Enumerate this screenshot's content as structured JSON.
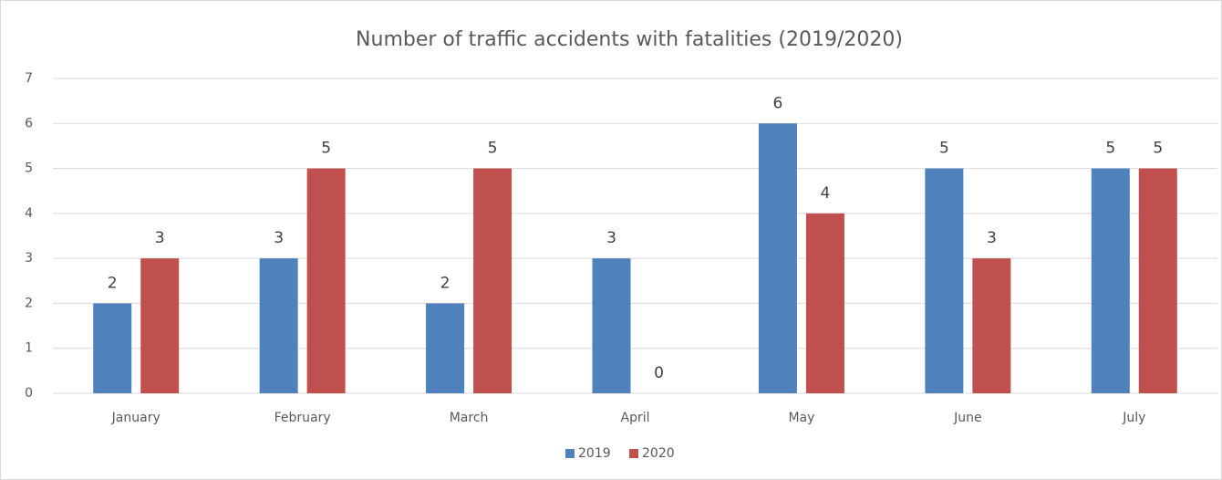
{
  "chart_data": {
    "type": "bar",
    "title": "Number of traffic accidents with fatalities (2019/2020)",
    "categories": [
      "January",
      "February",
      "March",
      "April",
      "May",
      "June",
      "July"
    ],
    "series": [
      {
        "name": "2019",
        "color": "#4f81bd",
        "values": [
          2,
          3,
          2,
          3,
          6,
          5,
          5
        ]
      },
      {
        "name": "2020",
        "color": "#c0504d",
        "values": [
          3,
          5,
          5,
          0,
          4,
          3,
          5
        ]
      }
    ],
    "ylim": [
      0,
      7
    ],
    "yticks": [
      0,
      1,
      2,
      3,
      4,
      5,
      6,
      7
    ],
    "grid": true,
    "legend": "bottom"
  }
}
